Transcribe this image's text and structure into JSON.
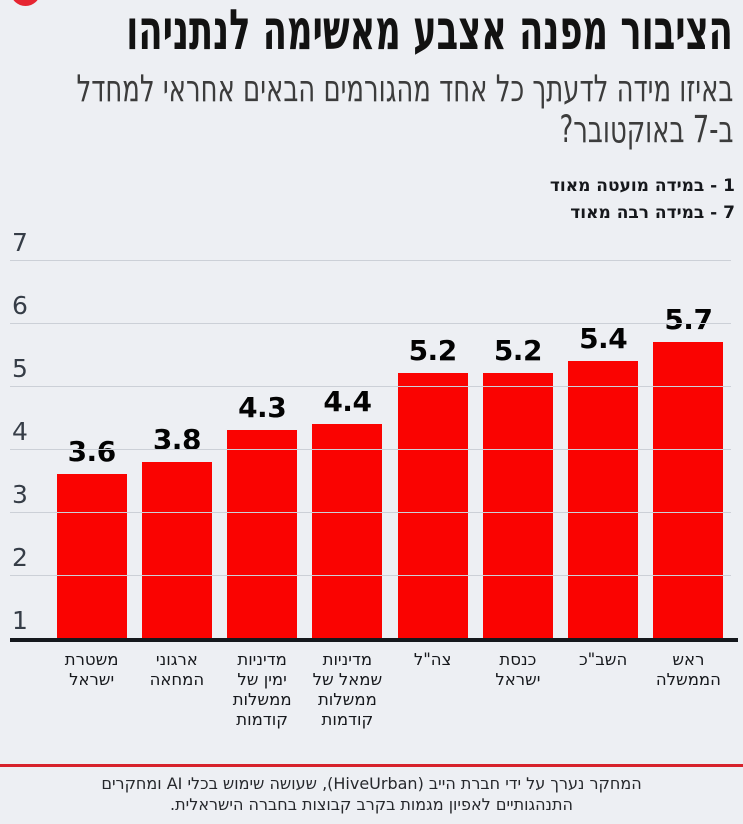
{
  "page": {
    "background": "#edeff3"
  },
  "header": {
    "title": "הציבור מפנה אצבע מאשימה לנתניהו",
    "subtitle_lines": [
      "באיזו מידה לדעתך כל אחד מהגורמים הבאים אחראי למחדל",
      "ב-7 באוקטובר?"
    ],
    "scale_notes": [
      "1 - במידה מועטה מאוד",
      "7 - במידה רבה מאוד"
    ]
  },
  "chart_data": {
    "type": "bar",
    "title": "הציבור מפנה אצבע מאשימה לנתניהו",
    "question": "באיזו מידה לדעתך כל אחד מהגורמים הבאים אחראי למחדל ב-7 באוקטובר?",
    "scale": {
      "min_label": "1 - במידה מועטה מאוד",
      "max_label": "7 - במידה רבה מאוד"
    },
    "categories": [
      "ראש הממשלה",
      "השב\"כ",
      "כנסת ישראל",
      "צה\"ל",
      "מדיניות שמאל של ממשלות קודמות",
      "מדיניות ימין של ממשלות קודמות",
      "ארגוני המחאה",
      "משטרת ישראל"
    ],
    "categories_display": [
      "ראש\nהממשלה",
      "השב\"כ",
      "כנסת\nישראל",
      "צה\"ל",
      "מדיניות\nשמאל של\nממשלות\nקודמות",
      "מדיניות\nימין של\nממשלות\nקודמות",
      "ארגוני\nהמחאה",
      "משטרת\nישראל"
    ],
    "values": [
      5.7,
      5.4,
      5.2,
      5.2,
      4.4,
      4.3,
      3.8,
      3.6
    ],
    "ylim": [
      1,
      7
    ],
    "yticks": [
      7,
      6,
      5,
      4,
      3,
      2,
      1
    ],
    "grid": true,
    "legend_position": "top-right",
    "bar_color": "#fa0301",
    "value_label_color": "#030303",
    "direction": "rtl"
  },
  "footer": {
    "lines": [
      "המחקר נערך על ידי חברת הייב (HiveUrban), שעושה שימוש בכלי AI ומחקרים",
      "התנהגותיים לאפיון מגמות בקרב קבוצות בחברה הישראלית."
    ],
    "rule_color": "#d7212b"
  },
  "decor": {
    "logo_dot_color": "#e62531"
  }
}
